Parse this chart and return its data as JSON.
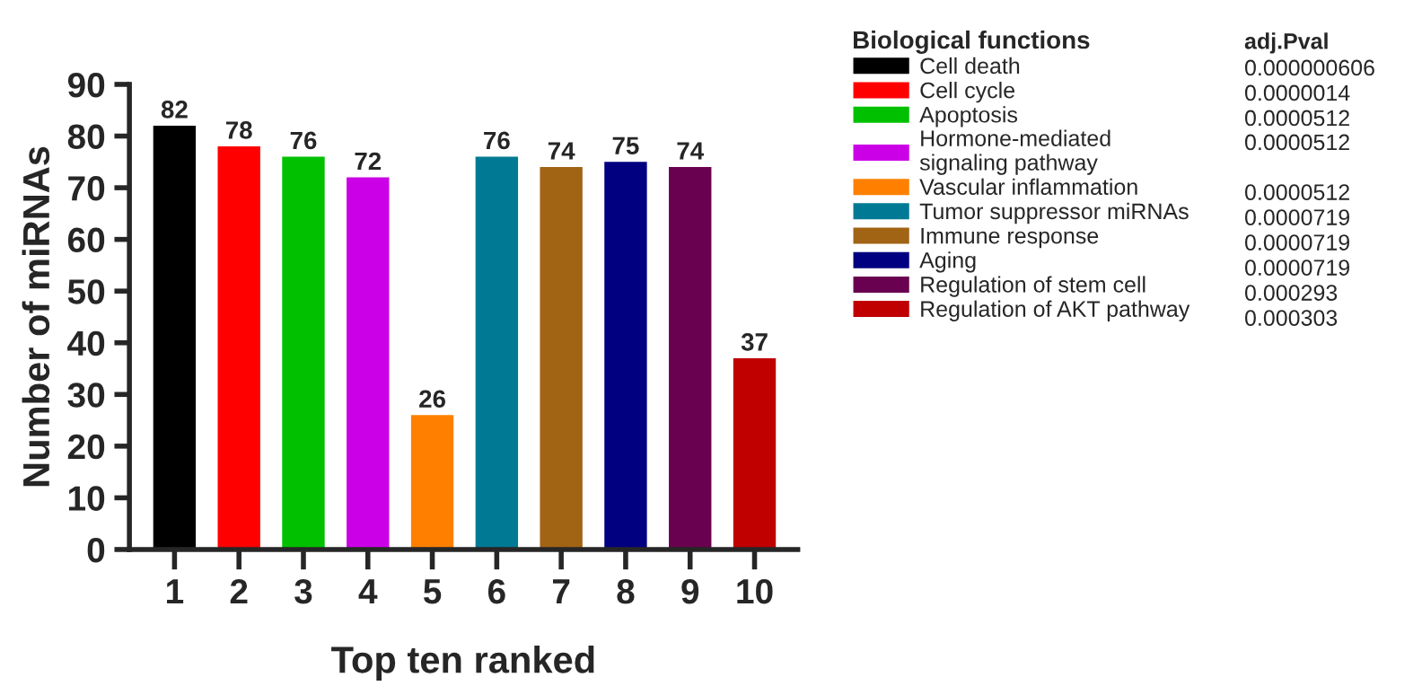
{
  "chart_data": {
    "type": "bar",
    "xlabel": "Top ten ranked",
    "ylabel": "Number of miRNAs",
    "legend_title": "Biological functions",
    "categories": [
      "1",
      "2",
      "3",
      "4",
      "5",
      "6",
      "7",
      "8",
      "9",
      "10"
    ],
    "series": [
      {
        "name": "Cell death",
        "color": "#000000",
        "values": [
          82,
          null,
          null,
          null,
          null,
          null,
          null,
          null,
          null,
          null
        ]
      },
      {
        "name": "Cell cycle",
        "color": "#ff0000",
        "values": [
          null,
          78,
          null,
          null,
          null,
          null,
          null,
          null,
          null,
          null
        ]
      },
      {
        "name": "Apoptosis",
        "color": "#00c000",
        "values": [
          null,
          null,
          76,
          null,
          null,
          null,
          null,
          null,
          null,
          null
        ]
      },
      {
        "name": "Hormone-mediated\nsignaling pathway",
        "color": "#cc00e6",
        "values": [
          null,
          null,
          null,
          72,
          null,
          null,
          null,
          null,
          null,
          null
        ]
      },
      {
        "name": "Vascular inflammation",
        "color": "#ff8000",
        "values": [
          null,
          null,
          null,
          null,
          26,
          null,
          null,
          null,
          null,
          null
        ]
      },
      {
        "name": "Tumor suppressor miRNAs",
        "color": "#007a94",
        "values": [
          null,
          null,
          null,
          null,
          null,
          76,
          null,
          null,
          null,
          null
        ]
      },
      {
        "name": "Immune response",
        "color": "#a06414",
        "values": [
          null,
          null,
          null,
          null,
          null,
          null,
          74,
          null,
          null,
          null
        ]
      },
      {
        "name": "Aging",
        "color": "#000080",
        "values": [
          null,
          null,
          null,
          null,
          null,
          null,
          null,
          75,
          null,
          null
        ]
      },
      {
        "name": "Regulation of stem cell",
        "color": "#6a0050",
        "values": [
          null,
          null,
          null,
          null,
          null,
          null,
          null,
          null,
          74,
          null
        ]
      },
      {
        "name": "Regulation of AKT pathway",
        "color": "#c00000",
        "values": [
          null,
          null,
          null,
          null,
          null,
          null,
          null,
          null,
          null,
          37
        ]
      }
    ],
    "ylim": [
      0,
      90
    ],
    "yticks": [
      0,
      10,
      20,
      30,
      40,
      50,
      60,
      70,
      80,
      90
    ],
    "data_labels": true,
    "legend": "right",
    "grid": false,
    "annotations": [
      "adj.Pval",
      "0.000000606",
      "0.0000014",
      "0.0000512",
      "0.0000512",
      "0.0000512",
      "0.0000719",
      "0.0000719",
      "0.0000719",
      "0.000293",
      "0.000303"
    ]
  }
}
